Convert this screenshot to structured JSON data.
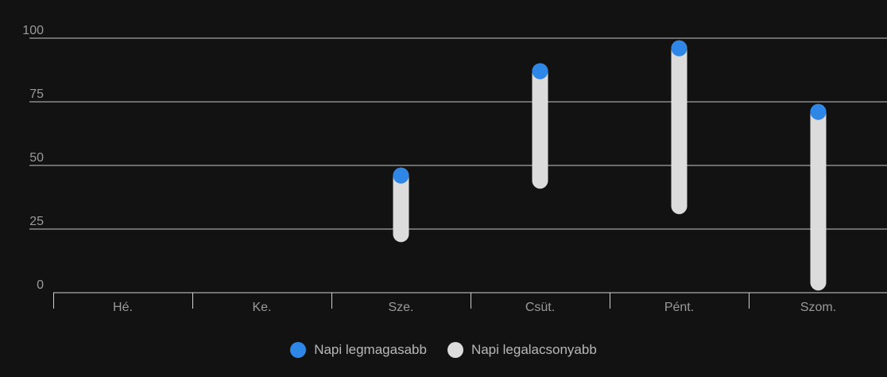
{
  "chart_data": {
    "type": "range-bar",
    "categories": [
      "Hé.",
      "Ke.",
      "Sze.",
      "Csüt.",
      "Pént.",
      "Szom."
    ],
    "series": [
      {
        "name": "Napi legmagasabb",
        "values": [
          null,
          null,
          46,
          87,
          96,
          71
        ]
      },
      {
        "name": "Napi legalacsonyabb",
        "values": [
          null,
          null,
          23,
          44,
          34,
          4
        ]
      }
    ],
    "ylim": [
      0,
      100
    ],
    "yticks": [
      0,
      25,
      50,
      75,
      100
    ],
    "grid": true,
    "legend_position": "bottom-center"
  },
  "colors": {
    "background": "#121212",
    "high": "#2e86e6",
    "low": "#dcdcdc",
    "grid": "#e6e6e6",
    "axis": "#d0d0d0",
    "text": "#9a9a9a"
  },
  "legend": {
    "high_label": "Napi legmagasabb",
    "low_label": "Napi legalacsonyabb"
  }
}
